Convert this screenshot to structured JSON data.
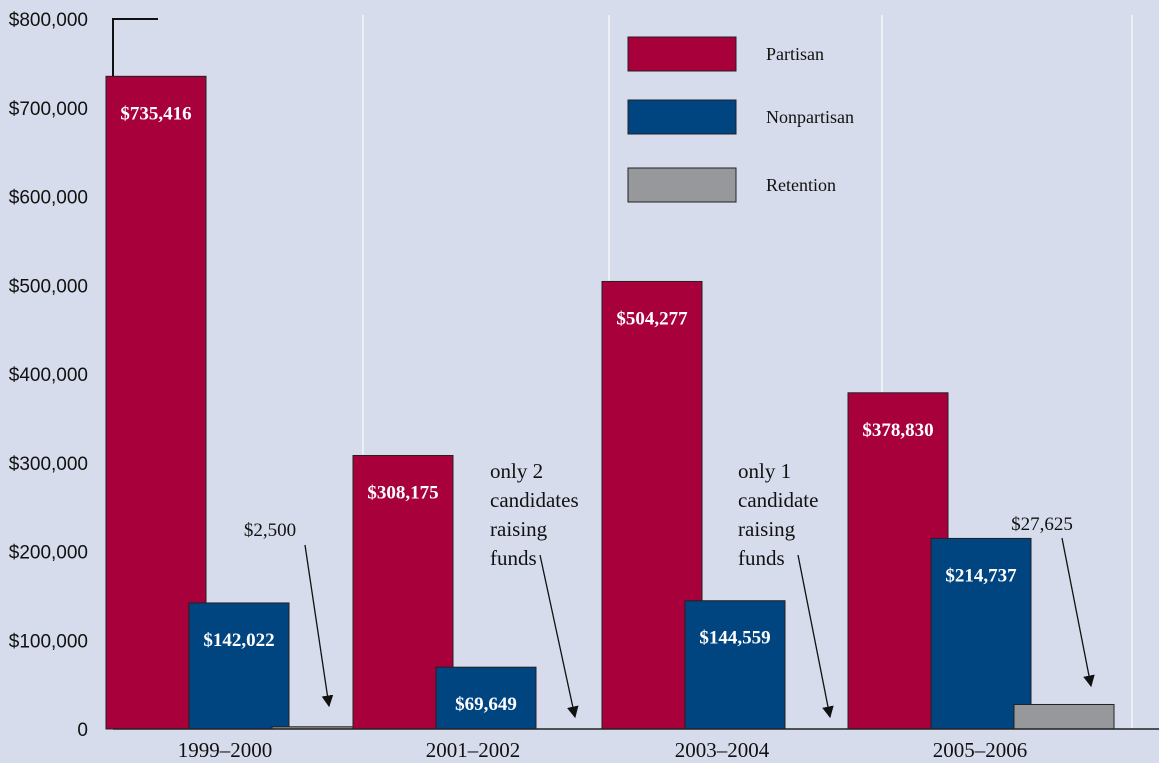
{
  "chart_data": {
    "type": "bar",
    "categories": [
      "1999–2000",
      "2001–2002",
      "2003–2004",
      "2005–2006"
    ],
    "series": [
      {
        "name": "Partisan",
        "color": "#a8003a",
        "values": [
          735416,
          308175,
          504277,
          378830
        ],
        "labels": [
          "$735,416",
          "$308,175",
          "$504,277",
          "$378,830"
        ]
      },
      {
        "name": "Nonpartisan",
        "color": "#004480",
        "values": [
          142022,
          69649,
          144559,
          214737
        ],
        "labels": [
          "$142,022",
          "$69,649",
          "$144,559",
          "$214,737"
        ]
      },
      {
        "name": "Retention",
        "color": "#96989b",
        "values": [
          2500,
          0,
          0,
          27625
        ],
        "labels": [
          "$2,500",
          "",
          "",
          "$27,625"
        ]
      }
    ],
    "yticks": [
      {
        "value": 0,
        "label": "0"
      },
      {
        "value": 100000,
        "label": "$100,000"
      },
      {
        "value": 200000,
        "label": "$200,000"
      },
      {
        "value": 300000,
        "label": "$300,000"
      },
      {
        "value": 400000,
        "label": "$400,000"
      },
      {
        "value": 500000,
        "label": "$500,000"
      },
      {
        "value": 600000,
        "label": "$600,000"
      },
      {
        "value": 700000,
        "label": "$700,000"
      },
      {
        "value": 800000,
        "label": "$800,000"
      }
    ],
    "ylim": [
      0,
      800000
    ],
    "title": "",
    "xlabel": "",
    "ylabel": "",
    "legend_position": "top-right",
    "grid": "vertical separators between categories",
    "annotations": [
      {
        "category": "2001–2002",
        "lines": [
          "only 2",
          "candidates",
          "raising",
          "funds"
        ]
      },
      {
        "category": "2003–2004",
        "lines": [
          "only 1",
          "candidate",
          "raising",
          "funds"
        ]
      }
    ],
    "background": "#d6dcec"
  }
}
